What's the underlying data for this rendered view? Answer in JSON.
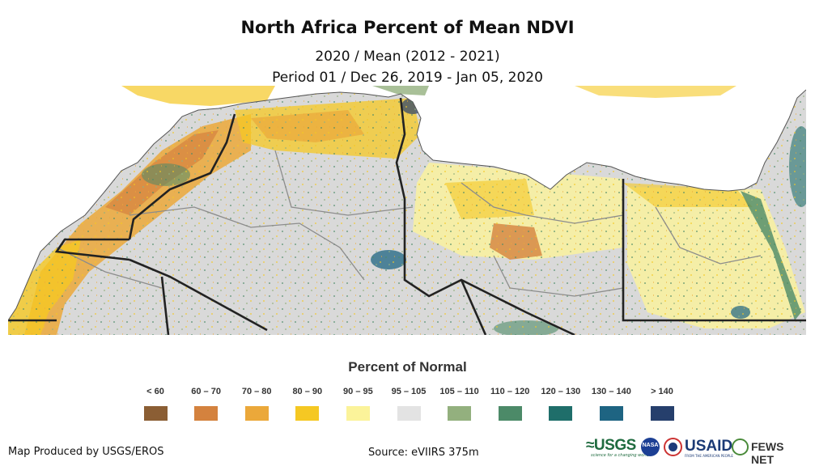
{
  "title": "North Africa Percent of Mean NDVI",
  "subtitle_line1": "2020 / Mean (2012 - 2021)",
  "subtitle_line2": "Period 01 / Dec 26, 2019 - Jan 05, 2020",
  "legend": {
    "title": "Percent of Normal",
    "items": [
      {
        "label": "< 60",
        "color": "#8b5e34"
      },
      {
        "label": "60 – 70",
        "color": "#d4823e"
      },
      {
        "label": "70 – 80",
        "color": "#eba83a"
      },
      {
        "label": "80 – 90",
        "color": "#f5c823"
      },
      {
        "label": "90 – 95",
        "color": "#fbf39a"
      },
      {
        "label": "95 – 105",
        "color": "#e3e3e3"
      },
      {
        "label": "105 – 110",
        "color": "#93b07e"
      },
      {
        "label": "110 – 120",
        "color": "#4c8a68"
      },
      {
        "label": "120 – 130",
        "color": "#1f6e6a"
      },
      {
        "label": "130 – 140",
        "color": "#1e6482"
      },
      {
        "label": "> 140",
        "color": "#263f6c"
      }
    ]
  },
  "footer": {
    "producer": "Map Produced by USGS/EROS",
    "source": "Source: eVIIRS 375m"
  },
  "logos": {
    "usgs": "≈USGS",
    "usgs_tagline": "science for a changing world",
    "nasa": "NASA",
    "usaid": "USAID",
    "usaid_tagline": "FROM THE AMERICAN PEOPLE",
    "fews": "FEWS NET"
  },
  "colors": {
    "sea": "#ffffff",
    "land_base": "#d9d9d9",
    "border": "#222222",
    "admin_line": "#8c8c8c"
  }
}
